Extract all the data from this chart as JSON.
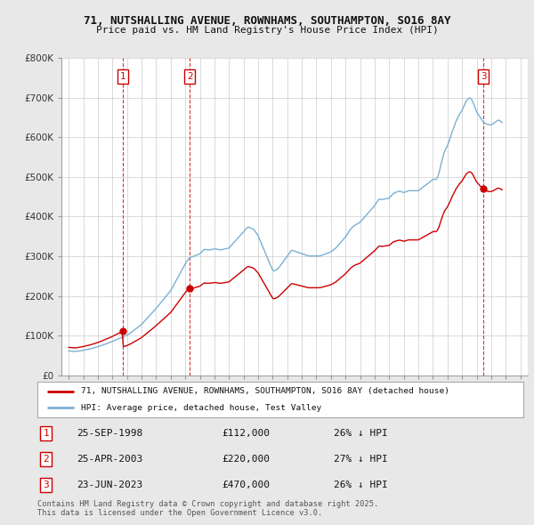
{
  "title1": "71, NUTSHALLING AVENUE, ROWNHAMS, SOUTHAMPTON, SO16 8AY",
  "title2": "Price paid vs. HM Land Registry's House Price Index (HPI)",
  "background_color": "#e8e8e8",
  "plot_bg_color": "#ffffff",
  "ylabel_color": "#333333",
  "grid_color": "#cccccc",
  "sale_color": "#cc0000",
  "hpi_color": "#7ab0d4",
  "sales": [
    {
      "date_num": 1998.73,
      "price": 112000,
      "label": "1"
    },
    {
      "date_num": 2003.32,
      "price": 220000,
      "label": "2"
    },
    {
      "date_num": 2023.48,
      "price": 470000,
      "label": "3"
    }
  ],
  "sale_dates_display": [
    "25-SEP-1998",
    "25-APR-2003",
    "23-JUN-2023"
  ],
  "sale_prices_display": [
    "£112,000",
    "£220,000",
    "£470,000"
  ],
  "sale_hpi_pct": [
    "26% ↓ HPI",
    "27% ↓ HPI",
    "26% ↓ HPI"
  ],
  "legend1": "71, NUTSHALLING AVENUE, ROWNHAMS, SOUTHAMPTON, SO16 8AY (detached house)",
  "legend2": "HPI: Average price, detached house, Test Valley",
  "footer": "Contains HM Land Registry data © Crown copyright and database right 2025.\nThis data is licensed under the Open Government Licence v3.0.",
  "ylim": [
    0,
    800000
  ],
  "xlim_start": 1994.5,
  "xlim_end": 2026.5,
  "yticks": [
    0,
    100000,
    200000,
    300000,
    400000,
    500000,
    600000,
    700000,
    800000
  ],
  "ytick_labels": [
    "£0",
    "£100K",
    "£200K",
    "£300K",
    "£400K",
    "£500K",
    "£600K",
    "£700K",
    "£800K"
  ],
  "xticks": [
    1995,
    1996,
    1997,
    1998,
    1999,
    2000,
    2001,
    2002,
    2003,
    2004,
    2005,
    2006,
    2007,
    2008,
    2009,
    2010,
    2011,
    2012,
    2013,
    2014,
    2015,
    2016,
    2017,
    2018,
    2019,
    2020,
    2021,
    2022,
    2023,
    2024,
    2025,
    2026
  ],
  "hpi_index": [
    [
      1995.0,
      52.5
    ],
    [
      1995.08,
      52.3
    ],
    [
      1995.17,
      52.1
    ],
    [
      1995.25,
      51.8
    ],
    [
      1995.33,
      51.6
    ],
    [
      1995.42,
      51.5
    ],
    [
      1995.5,
      51.7
    ],
    [
      1995.58,
      52.0
    ],
    [
      1995.67,
      52.4
    ],
    [
      1995.75,
      52.8
    ],
    [
      1995.83,
      53.2
    ],
    [
      1995.92,
      53.6
    ],
    [
      1996.0,
      54.1
    ],
    [
      1996.08,
      54.6
    ],
    [
      1996.17,
      55.1
    ],
    [
      1996.25,
      55.6
    ],
    [
      1996.33,
      56.1
    ],
    [
      1996.42,
      56.7
    ],
    [
      1996.5,
      57.3
    ],
    [
      1996.58,
      58.0
    ],
    [
      1996.67,
      58.7
    ],
    [
      1996.75,
      59.4
    ],
    [
      1996.83,
      60.1
    ],
    [
      1996.92,
      60.8
    ],
    [
      1997.0,
      61.6
    ],
    [
      1997.08,
      62.5
    ],
    [
      1997.17,
      63.4
    ],
    [
      1997.25,
      64.3
    ],
    [
      1997.33,
      65.2
    ],
    [
      1997.42,
      66.1
    ],
    [
      1997.5,
      67.0
    ],
    [
      1997.58,
      68.0
    ],
    [
      1997.67,
      69.0
    ],
    [
      1997.75,
      70.0
    ],
    [
      1997.83,
      71.0
    ],
    [
      1997.92,
      72.0
    ],
    [
      1998.0,
      73.1
    ],
    [
      1998.08,
      74.2
    ],
    [
      1998.17,
      75.4
    ],
    [
      1998.25,
      76.5
    ],
    [
      1998.33,
      77.7
    ],
    [
      1998.42,
      78.8
    ],
    [
      1998.5,
      80.0
    ],
    [
      1998.58,
      81.2
    ],
    [
      1998.67,
      82.3
    ],
    [
      1998.75,
      83.4
    ],
    [
      1998.83,
      84.4
    ],
    [
      1998.92,
      85.4
    ],
    [
      1999.0,
      86.4
    ],
    [
      1999.08,
      88.0
    ],
    [
      1999.17,
      89.7
    ],
    [
      1999.25,
      91.5
    ],
    [
      1999.33,
      93.4
    ],
    [
      1999.42,
      95.3
    ],
    [
      1999.5,
      97.3
    ],
    [
      1999.58,
      99.3
    ],
    [
      1999.67,
      101.3
    ],
    [
      1999.75,
      103.4
    ],
    [
      1999.83,
      105.5
    ],
    [
      1999.92,
      107.6
    ],
    [
      2000.0,
      109.8
    ],
    [
      2000.08,
      112.5
    ],
    [
      2000.17,
      115.3
    ],
    [
      2000.25,
      118.1
    ],
    [
      2000.33,
      120.9
    ],
    [
      2000.42,
      123.8
    ],
    [
      2000.5,
      126.7
    ],
    [
      2000.58,
      129.6
    ],
    [
      2000.67,
      132.5
    ],
    [
      2000.75,
      135.4
    ],
    [
      2000.83,
      138.3
    ],
    [
      2000.92,
      141.2
    ],
    [
      2001.0,
      144.1
    ],
    [
      2001.08,
      147.3
    ],
    [
      2001.17,
      150.5
    ],
    [
      2001.25,
      153.7
    ],
    [
      2001.33,
      156.9
    ],
    [
      2001.42,
      160.1
    ],
    [
      2001.5,
      163.3
    ],
    [
      2001.58,
      166.5
    ],
    [
      2001.67,
      169.7
    ],
    [
      2001.75,
      172.9
    ],
    [
      2001.83,
      176.1
    ],
    [
      2001.92,
      179.3
    ],
    [
      2002.0,
      182.5
    ],
    [
      2002.08,
      187.3
    ],
    [
      2002.17,
      192.1
    ],
    [
      2002.25,
      196.9
    ],
    [
      2002.33,
      201.7
    ],
    [
      2002.42,
      206.5
    ],
    [
      2002.5,
      211.3
    ],
    [
      2002.58,
      216.1
    ],
    [
      2002.67,
      220.9
    ],
    [
      2002.75,
      225.7
    ],
    [
      2002.83,
      230.5
    ],
    [
      2002.92,
      235.3
    ],
    [
      2003.0,
      240.1
    ],
    [
      2003.08,
      244.0
    ],
    [
      2003.17,
      247.9
    ],
    [
      2003.25,
      251.8
    ],
    [
      2003.33,
      253.5
    ],
    [
      2003.42,
      254.5
    ],
    [
      2003.5,
      255.5
    ],
    [
      2003.58,
      256.5
    ],
    [
      2003.67,
      257.5
    ],
    [
      2003.75,
      258.5
    ],
    [
      2003.83,
      259.5
    ],
    [
      2003.92,
      260.5
    ],
    [
      2004.0,
      261.5
    ],
    [
      2004.08,
      264.3
    ],
    [
      2004.17,
      267.1
    ],
    [
      2004.25,
      269.9
    ],
    [
      2004.33,
      271.2
    ],
    [
      2004.42,
      270.8
    ],
    [
      2004.5,
      270.4
    ],
    [
      2004.58,
      270.0
    ],
    [
      2004.67,
      270.4
    ],
    [
      2004.75,
      270.8
    ],
    [
      2004.83,
      271.2
    ],
    [
      2004.92,
      271.6
    ],
    [
      2005.0,
      272.0
    ],
    [
      2005.08,
      272.4
    ],
    [
      2005.17,
      271.8
    ],
    [
      2005.25,
      271.2
    ],
    [
      2005.33,
      270.6
    ],
    [
      2005.42,
      270.0
    ],
    [
      2005.5,
      270.6
    ],
    [
      2005.58,
      271.2
    ],
    [
      2005.67,
      271.8
    ],
    [
      2005.75,
      272.4
    ],
    [
      2005.83,
      273.0
    ],
    [
      2005.92,
      273.6
    ],
    [
      2006.0,
      274.2
    ],
    [
      2006.08,
      277.1
    ],
    [
      2006.17,
      280.0
    ],
    [
      2006.25,
      282.9
    ],
    [
      2006.33,
      285.8
    ],
    [
      2006.42,
      288.7
    ],
    [
      2006.5,
      291.6
    ],
    [
      2006.58,
      294.5
    ],
    [
      2006.67,
      297.4
    ],
    [
      2006.75,
      300.3
    ],
    [
      2006.83,
      303.2
    ],
    [
      2006.92,
      306.1
    ],
    [
      2007.0,
      309.0
    ],
    [
      2007.08,
      312.1
    ],
    [
      2007.17,
      315.2
    ],
    [
      2007.25,
      318.3
    ],
    [
      2007.33,
      319.3
    ],
    [
      2007.42,
      318.2
    ],
    [
      2007.5,
      317.1
    ],
    [
      2007.58,
      316.0
    ],
    [
      2007.67,
      314.9
    ],
    [
      2007.75,
      312.4
    ],
    [
      2007.83,
      308.5
    ],
    [
      2007.92,
      304.6
    ],
    [
      2008.0,
      300.7
    ],
    [
      2008.08,
      294.5
    ],
    [
      2008.17,
      288.3
    ],
    [
      2008.25,
      282.1
    ],
    [
      2008.33,
      275.9
    ],
    [
      2008.42,
      269.7
    ],
    [
      2008.5,
      263.5
    ],
    [
      2008.58,
      257.3
    ],
    [
      2008.67,
      251.1
    ],
    [
      2008.75,
      244.9
    ],
    [
      2008.83,
      238.7
    ],
    [
      2008.92,
      232.5
    ],
    [
      2009.0,
      226.3
    ],
    [
      2009.08,
      224.8
    ],
    [
      2009.17,
      225.6
    ],
    [
      2009.25,
      227.4
    ],
    [
      2009.33,
      229.2
    ],
    [
      2009.42,
      231.8
    ],
    [
      2009.5,
      235.0
    ],
    [
      2009.58,
      238.6
    ],
    [
      2009.67,
      242.2
    ],
    [
      2009.75,
      245.8
    ],
    [
      2009.83,
      249.4
    ],
    [
      2009.92,
      253.0
    ],
    [
      2010.0,
      256.6
    ],
    [
      2010.08,
      260.2
    ],
    [
      2010.17,
      263.8
    ],
    [
      2010.25,
      267.4
    ],
    [
      2010.33,
      269.3
    ],
    [
      2010.42,
      268.4
    ],
    [
      2010.5,
      267.5
    ],
    [
      2010.58,
      266.6
    ],
    [
      2010.67,
      265.7
    ],
    [
      2010.75,
      264.8
    ],
    [
      2010.83,
      263.9
    ],
    [
      2010.92,
      263.0
    ],
    [
      2011.0,
      262.1
    ],
    [
      2011.08,
      261.2
    ],
    [
      2011.17,
      260.3
    ],
    [
      2011.25,
      259.4
    ],
    [
      2011.33,
      258.5
    ],
    [
      2011.42,
      257.6
    ],
    [
      2011.5,
      257.0
    ],
    [
      2011.58,
      257.0
    ],
    [
      2011.67,
      257.0
    ],
    [
      2011.75,
      257.0
    ],
    [
      2011.83,
      257.0
    ],
    [
      2011.92,
      257.0
    ],
    [
      2012.0,
      257.0
    ],
    [
      2012.08,
      257.0
    ],
    [
      2012.17,
      257.2
    ],
    [
      2012.25,
      257.4
    ],
    [
      2012.33,
      258.0
    ],
    [
      2012.42,
      259.0
    ],
    [
      2012.5,
      260.0
    ],
    [
      2012.58,
      261.0
    ],
    [
      2012.67,
      262.0
    ],
    [
      2012.75,
      263.0
    ],
    [
      2012.83,
      264.0
    ],
    [
      2012.92,
      265.0
    ],
    [
      2013.0,
      266.0
    ],
    [
      2013.08,
      268.0
    ],
    [
      2013.17,
      270.0
    ],
    [
      2013.25,
      272.0
    ],
    [
      2013.33,
      274.0
    ],
    [
      2013.42,
      277.0
    ],
    [
      2013.5,
      280.0
    ],
    [
      2013.58,
      283.0
    ],
    [
      2013.67,
      286.0
    ],
    [
      2013.75,
      289.0
    ],
    [
      2013.83,
      292.0
    ],
    [
      2013.92,
      295.0
    ],
    [
      2014.0,
      298.0
    ],
    [
      2014.08,
      302.0
    ],
    [
      2014.17,
      306.0
    ],
    [
      2014.25,
      310.0
    ],
    [
      2014.33,
      314.0
    ],
    [
      2014.42,
      317.0
    ],
    [
      2014.5,
      320.0
    ],
    [
      2014.58,
      322.0
    ],
    [
      2014.67,
      323.5
    ],
    [
      2014.75,
      325.0
    ],
    [
      2014.83,
      326.5
    ],
    [
      2014.92,
      328.0
    ],
    [
      2015.0,
      329.5
    ],
    [
      2015.08,
      332.5
    ],
    [
      2015.17,
      335.5
    ],
    [
      2015.25,
      338.5
    ],
    [
      2015.33,
      341.5
    ],
    [
      2015.42,
      344.5
    ],
    [
      2015.5,
      347.5
    ],
    [
      2015.58,
      350.5
    ],
    [
      2015.67,
      353.5
    ],
    [
      2015.75,
      356.5
    ],
    [
      2015.83,
      359.5
    ],
    [
      2015.92,
      362.5
    ],
    [
      2016.0,
      365.5
    ],
    [
      2016.08,
      369.5
    ],
    [
      2016.17,
      373.5
    ],
    [
      2016.25,
      377.5
    ],
    [
      2016.33,
      379.5
    ],
    [
      2016.42,
      379.0
    ],
    [
      2016.5,
      378.5
    ],
    [
      2016.58,
      379.0
    ],
    [
      2016.67,
      379.5
    ],
    [
      2016.75,
      380.0
    ],
    [
      2016.83,
      380.5
    ],
    [
      2016.92,
      381.0
    ],
    [
      2017.0,
      381.5
    ],
    [
      2017.08,
      384.5
    ],
    [
      2017.17,
      387.5
    ],
    [
      2017.25,
      390.5
    ],
    [
      2017.33,
      392.5
    ],
    [
      2017.42,
      393.5
    ],
    [
      2017.5,
      394.5
    ],
    [
      2017.58,
      395.5
    ],
    [
      2017.67,
      396.5
    ],
    [
      2017.75,
      396.5
    ],
    [
      2017.83,
      395.5
    ],
    [
      2017.92,
      394.5
    ],
    [
      2018.0,
      393.5
    ],
    [
      2018.08,
      394.5
    ],
    [
      2018.17,
      395.5
    ],
    [
      2018.25,
      396.5
    ],
    [
      2018.33,
      397.5
    ],
    [
      2018.42,
      397.5
    ],
    [
      2018.5,
      397.5
    ],
    [
      2018.58,
      397.5
    ],
    [
      2018.67,
      397.5
    ],
    [
      2018.75,
      397.5
    ],
    [
      2018.83,
      397.5
    ],
    [
      2018.92,
      397.5
    ],
    [
      2019.0,
      397.5
    ],
    [
      2019.08,
      399.5
    ],
    [
      2019.17,
      401.5
    ],
    [
      2019.25,
      403.5
    ],
    [
      2019.33,
      405.5
    ],
    [
      2019.42,
      407.5
    ],
    [
      2019.5,
      409.5
    ],
    [
      2019.58,
      411.5
    ],
    [
      2019.67,
      413.5
    ],
    [
      2019.75,
      415.5
    ],
    [
      2019.83,
      417.5
    ],
    [
      2019.92,
      419.5
    ],
    [
      2020.0,
      421.5
    ],
    [
      2020.08,
      422.5
    ],
    [
      2020.17,
      421.5
    ],
    [
      2020.25,
      422.5
    ],
    [
      2020.33,
      427.5
    ],
    [
      2020.42,
      435.5
    ],
    [
      2020.5,
      446.5
    ],
    [
      2020.58,
      457.5
    ],
    [
      2020.67,
      468.5
    ],
    [
      2020.75,
      477.5
    ],
    [
      2020.83,
      484.5
    ],
    [
      2020.92,
      489.5
    ],
    [
      2021.0,
      494.5
    ],
    [
      2021.08,
      501.5
    ],
    [
      2021.17,
      509.5
    ],
    [
      2021.25,
      517.5
    ],
    [
      2021.33,
      525.5
    ],
    [
      2021.42,
      532.5
    ],
    [
      2021.5,
      539.5
    ],
    [
      2021.58,
      546.5
    ],
    [
      2021.67,
      552.5
    ],
    [
      2021.75,
      557.5
    ],
    [
      2021.83,
      562.5
    ],
    [
      2021.92,
      566.5
    ],
    [
      2022.0,
      570.5
    ],
    [
      2022.08,
      576.5
    ],
    [
      2022.17,
      582.5
    ],
    [
      2022.25,
      588.5
    ],
    [
      2022.33,
      592.5
    ],
    [
      2022.42,
      595.5
    ],
    [
      2022.5,
      597.5
    ],
    [
      2022.58,
      596.5
    ],
    [
      2022.67,
      593.5
    ],
    [
      2022.75,
      588.5
    ],
    [
      2022.83,
      581.5
    ],
    [
      2022.92,
      574.5
    ],
    [
      2023.0,
      567.5
    ],
    [
      2023.08,
      563.5
    ],
    [
      2023.17,
      559.5
    ],
    [
      2023.25,
      555.5
    ],
    [
      2023.33,
      551.5
    ],
    [
      2023.42,
      547.5
    ],
    [
      2023.5,
      544.5
    ],
    [
      2023.58,
      542.5
    ],
    [
      2023.67,
      541.5
    ],
    [
      2023.75,
      540.5
    ],
    [
      2023.83,
      539.5
    ],
    [
      2023.92,
      539.5
    ],
    [
      2024.0,
      539.5
    ],
    [
      2024.08,
      540.5
    ],
    [
      2024.17,
      542.5
    ],
    [
      2024.25,
      544.5
    ],
    [
      2024.33,
      546.5
    ],
    [
      2024.42,
      548.5
    ],
    [
      2024.5,
      549.5
    ],
    [
      2024.58,
      548.5
    ],
    [
      2024.67,
      546.5
    ],
    [
      2024.75,
      544.5
    ]
  ],
  "hpi_base_index_at_sale1": 83.4,
  "hpi_base_index_at_sale2": 253.5,
  "hpi_base_index_at_sale3": 547.5,
  "sale1_price": 112000,
  "sale1_date": 1998.73,
  "sale2_price": 220000,
  "sale2_date": 2003.32,
  "sale3_price": 470000,
  "sale3_date": 2023.48
}
